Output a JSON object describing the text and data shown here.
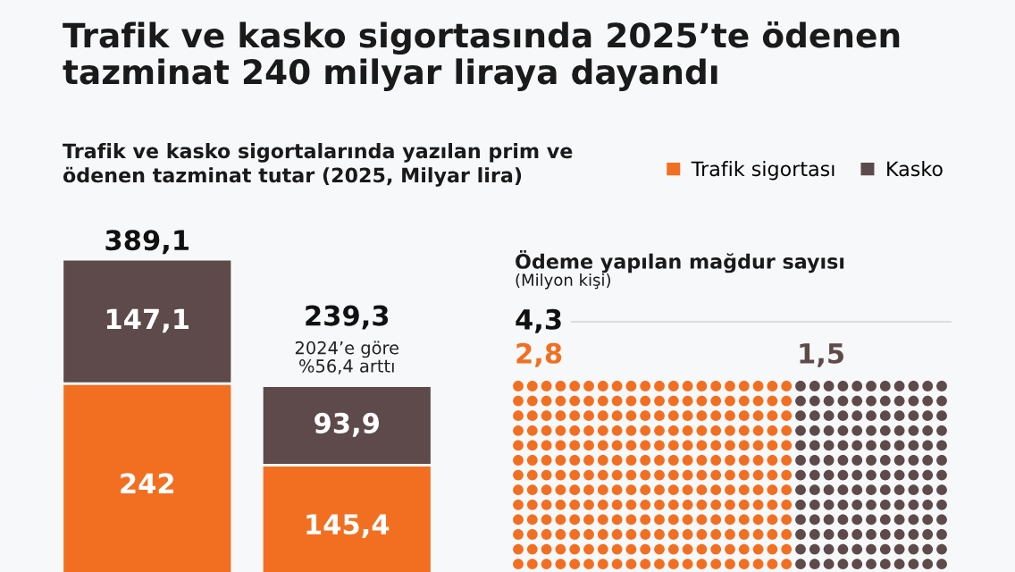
{
  "chart_data": [
    {
      "type": "bar",
      "title": "Trafik ve kasko sigortasında 2025’te ödenen\ntazminat 240 milyar liraya dayandı",
      "subtitle": "Trafik ve kasko sigortalarında yazılan prim ve\nödenen tazminat tutar (2025, Milyar lira)",
      "categories": [
        null,
        null
      ],
      "stacked": true,
      "tick_labels": false,
      "legend": "top right",
      "series": [
        {
          "name": "Trafik sigortası",
          "color": "#f26f21",
          "values": [
            242,
            145.4
          ],
          "value_labels": [
            "242",
            "145,4"
          ]
        },
        {
          "name": "Kasko",
          "color": "#5e4a4a",
          "values": [
            147.1,
            93.9
          ],
          "value_labels": [
            "147,1",
            "93,9"
          ]
        }
      ],
      "totals": [
        "389,1",
        "239,3"
      ],
      "annotations": [
        "2024’e göre\n%56,4 arttı"
      ]
    },
    {
      "type": "other",
      "title": "Ödeme yapılan mağdur sayısı",
      "subtitle": "(Milyon kişi)",
      "categories": [
        null,
        null
      ],
      "values": [
        2.8,
        1.5
      ],
      "value_labels": [
        "2,8",
        "1,5"
      ],
      "colors": [
        "#f26f21",
        "#5e4a4a"
      ],
      "totals": [
        "4,3"
      ]
    }
  ]
}
